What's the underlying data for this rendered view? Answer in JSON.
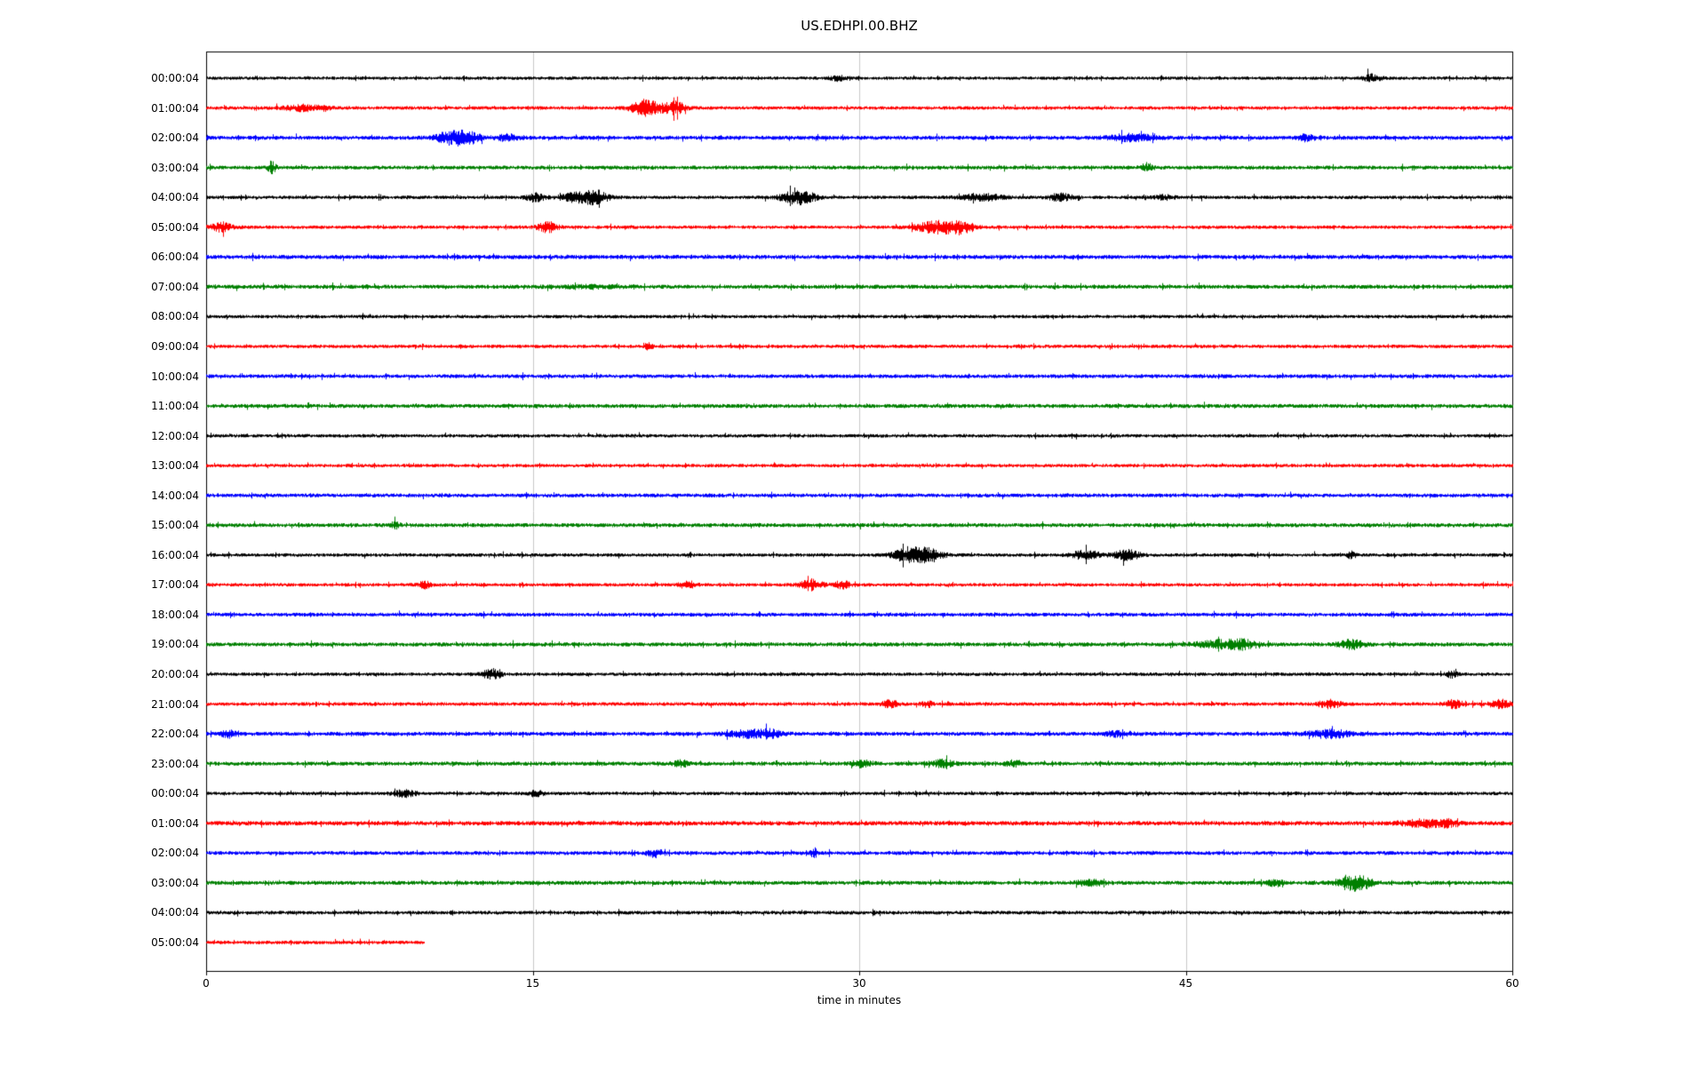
{
  "chart_data": {
    "type": "line",
    "subtype": "helicorder-seismogram",
    "title": "US.EDHPI.00.BHZ",
    "xlabel": "time in minutes",
    "x_range": [
      0,
      60
    ],
    "x_ticks": [
      0,
      15,
      30,
      45,
      60
    ],
    "x_tick_labels": [
      "0",
      "15",
      "30",
      "45",
      "60"
    ],
    "grid_x": [
      15,
      30,
      45
    ],
    "grid_color": "#c8c8c8",
    "trace_colors_cycle": [
      "#000000",
      "#ff0000",
      "#0000ff",
      "#008000"
    ],
    "rows": [
      {
        "label": "00:00:04",
        "color": "#000000",
        "noise": 0.95,
        "end_minute": 60,
        "events": [
          {
            "t": 29.0,
            "dur": 0.25,
            "amp": 1.2
          },
          {
            "t": 53.5,
            "dur": 0.3,
            "amp": 1.8
          }
        ]
      },
      {
        "label": "01:00:04",
        "color": "#ff0000",
        "noise": 1.0,
        "end_minute": 60,
        "events": [
          {
            "t": 4.5,
            "dur": 0.7,
            "amp": 1.5
          },
          {
            "t": 20.2,
            "dur": 0.45,
            "amp": 4.5
          },
          {
            "t": 21.5,
            "dur": 0.35,
            "amp": 3.5
          }
        ]
      },
      {
        "label": "02:00:04",
        "color": "#0000ff",
        "noise": 1.15,
        "end_minute": 60,
        "events": [
          {
            "t": 11.3,
            "dur": 0.5,
            "amp": 3.5
          },
          {
            "t": 12.1,
            "dur": 0.4,
            "amp": 2.2
          },
          {
            "t": 13.8,
            "dur": 0.3,
            "amp": 2.0
          },
          {
            "t": 42.5,
            "dur": 0.7,
            "amp": 1.8
          },
          {
            "t": 50.5,
            "dur": 0.25,
            "amp": 1.6
          }
        ]
      },
      {
        "label": "03:00:04",
        "color": "#008000",
        "noise": 1.1,
        "end_minute": 60,
        "events": [
          {
            "t": 3.0,
            "dur": 0.12,
            "amp": 3.5
          },
          {
            "t": 43.2,
            "dur": 0.18,
            "amp": 2.2
          }
        ]
      },
      {
        "label": "04:00:04",
        "color": "#000000",
        "noise": 1.0,
        "end_minute": 60,
        "events": [
          {
            "t": 15.1,
            "dur": 0.3,
            "amp": 2.2
          },
          {
            "t": 17.2,
            "dur": 0.6,
            "amp": 2.8
          },
          {
            "t": 18.0,
            "dur": 0.35,
            "amp": 2.2
          },
          {
            "t": 26.9,
            "dur": 0.45,
            "amp": 2.8
          },
          {
            "t": 27.6,
            "dur": 0.35,
            "amp": 2.4
          },
          {
            "t": 35.6,
            "dur": 0.7,
            "amp": 1.6
          },
          {
            "t": 39.2,
            "dur": 0.4,
            "amp": 1.8
          },
          {
            "t": 44.0,
            "dur": 0.3,
            "amp": 1.2
          }
        ]
      },
      {
        "label": "05:00:04",
        "color": "#ff0000",
        "noise": 1.0,
        "end_minute": 60,
        "events": [
          {
            "t": 0.7,
            "dur": 0.35,
            "amp": 2.2
          },
          {
            "t": 15.7,
            "dur": 0.3,
            "amp": 2.8
          },
          {
            "t": 33.6,
            "dur": 0.7,
            "amp": 3.2
          },
          {
            "t": 34.7,
            "dur": 0.35,
            "amp": 2.6
          }
        ]
      },
      {
        "label": "06:00:04",
        "color": "#0000ff",
        "noise": 1.2,
        "end_minute": 60,
        "events": []
      },
      {
        "label": "07:00:04",
        "color": "#008000",
        "noise": 1.15,
        "end_minute": 60,
        "events": [
          {
            "t": 17.5,
            "dur": 1.2,
            "amp": 0.5
          }
        ]
      },
      {
        "label": "08:00:04",
        "color": "#000000",
        "noise": 1.0,
        "end_minute": 60,
        "events": []
      },
      {
        "label": "09:00:04",
        "color": "#ff0000",
        "noise": 1.0,
        "end_minute": 60,
        "events": [
          {
            "t": 20.3,
            "dur": 0.12,
            "amp": 1.8
          }
        ]
      },
      {
        "label": "10:00:04",
        "color": "#0000ff",
        "noise": 1.1,
        "end_minute": 60,
        "events": []
      },
      {
        "label": "11:00:04",
        "color": "#008000",
        "noise": 1.15,
        "end_minute": 60,
        "events": []
      },
      {
        "label": "12:00:04",
        "color": "#000000",
        "noise": 1.0,
        "end_minute": 60,
        "events": []
      },
      {
        "label": "13:00:04",
        "color": "#ff0000",
        "noise": 1.0,
        "end_minute": 60,
        "events": []
      },
      {
        "label": "14:00:04",
        "color": "#0000ff",
        "noise": 1.1,
        "end_minute": 60,
        "events": []
      },
      {
        "label": "15:00:04",
        "color": "#008000",
        "noise": 1.15,
        "end_minute": 60,
        "events": [
          {
            "t": 8.7,
            "dur": 0.12,
            "amp": 1.6
          }
        ]
      },
      {
        "label": "16:00:04",
        "color": "#000000",
        "noise": 1.0,
        "end_minute": 60,
        "events": [
          {
            "t": 32.3,
            "dur": 0.5,
            "amp": 4.0
          },
          {
            "t": 33.3,
            "dur": 0.4,
            "amp": 3.0
          },
          {
            "t": 40.4,
            "dur": 0.5,
            "amp": 2.2
          },
          {
            "t": 42.3,
            "dur": 0.4,
            "amp": 2.6
          },
          {
            "t": 52.6,
            "dur": 0.12,
            "amp": 2.2
          }
        ]
      },
      {
        "label": "17:00:04",
        "color": "#ff0000",
        "noise": 1.0,
        "end_minute": 60,
        "events": [
          {
            "t": 10.0,
            "dur": 0.18,
            "amp": 2.0
          },
          {
            "t": 22.1,
            "dur": 0.25,
            "amp": 2.0
          },
          {
            "t": 27.8,
            "dur": 0.35,
            "amp": 2.6
          },
          {
            "t": 29.2,
            "dur": 0.25,
            "amp": 2.0
          }
        ]
      },
      {
        "label": "18:00:04",
        "color": "#0000ff",
        "noise": 1.1,
        "end_minute": 60,
        "events": []
      },
      {
        "label": "19:00:04",
        "color": "#008000",
        "noise": 1.15,
        "end_minute": 60,
        "events": [
          {
            "t": 46.6,
            "dur": 0.8,
            "amp": 2.0
          },
          {
            "t": 47.6,
            "dur": 0.4,
            "amp": 1.6
          },
          {
            "t": 52.6,
            "dur": 0.4,
            "amp": 2.4
          }
        ]
      },
      {
        "label": "20:00:04",
        "color": "#000000",
        "noise": 1.0,
        "end_minute": 60,
        "events": [
          {
            "t": 13.1,
            "dur": 0.28,
            "amp": 2.6
          },
          {
            "t": 57.2,
            "dur": 0.18,
            "amp": 1.6
          }
        ]
      },
      {
        "label": "21:00:04",
        "color": "#ff0000",
        "noise": 1.05,
        "end_minute": 60,
        "events": [
          {
            "t": 31.4,
            "dur": 0.25,
            "amp": 2.0
          },
          {
            "t": 33.1,
            "dur": 0.18,
            "amp": 1.6
          },
          {
            "t": 51.6,
            "dur": 0.35,
            "amp": 2.2
          },
          {
            "t": 57.3,
            "dur": 0.28,
            "amp": 2.2
          },
          {
            "t": 59.4,
            "dur": 0.35,
            "amp": 2.2
          }
        ]
      },
      {
        "label": "22:00:04",
        "color": "#0000ff",
        "noise": 1.15,
        "end_minute": 60,
        "events": [
          {
            "t": 1.0,
            "dur": 0.18,
            "amp": 2.4
          },
          {
            "t": 24.9,
            "dur": 0.7,
            "amp": 1.8
          },
          {
            "t": 25.9,
            "dur": 0.35,
            "amp": 1.5
          },
          {
            "t": 41.9,
            "dur": 0.45,
            "amp": 1.2
          },
          {
            "t": 51.6,
            "dur": 0.7,
            "amp": 2.0
          }
        ]
      },
      {
        "label": "23:00:04",
        "color": "#008000",
        "noise": 1.15,
        "end_minute": 60,
        "events": [
          {
            "t": 21.8,
            "dur": 0.25,
            "amp": 1.6
          },
          {
            "t": 30.1,
            "dur": 0.35,
            "amp": 1.6
          },
          {
            "t": 33.8,
            "dur": 0.35,
            "amp": 1.8
          },
          {
            "t": 37.1,
            "dur": 0.25,
            "amp": 1.5
          }
        ]
      },
      {
        "label": "00:00:04",
        "color": "#000000",
        "noise": 1.0,
        "end_minute": 60,
        "events": [
          {
            "t": 9.1,
            "dur": 0.35,
            "amp": 1.8
          },
          {
            "t": 15.1,
            "dur": 0.25,
            "amp": 1.5
          }
        ]
      },
      {
        "label": "01:00:04",
        "color": "#ff0000",
        "noise": 1.25,
        "end_minute": 60,
        "events": [
          {
            "t": 55.9,
            "dur": 0.7,
            "amp": 1.8
          },
          {
            "t": 57.1,
            "dur": 0.3,
            "amp": 1.4
          }
        ]
      },
      {
        "label": "02:00:04",
        "color": "#0000ff",
        "noise": 1.1,
        "end_minute": 60,
        "events": [
          {
            "t": 20.6,
            "dur": 0.25,
            "amp": 2.0
          },
          {
            "t": 27.9,
            "dur": 0.1,
            "amp": 2.6
          }
        ]
      },
      {
        "label": "03:00:04",
        "color": "#008000",
        "noise": 1.15,
        "end_minute": 60,
        "events": [
          {
            "t": 40.6,
            "dur": 0.45,
            "amp": 1.4
          },
          {
            "t": 49.1,
            "dur": 0.25,
            "amp": 1.6
          },
          {
            "t": 52.4,
            "dur": 0.35,
            "amp": 3.5
          },
          {
            "t": 53.1,
            "dur": 0.35,
            "amp": 2.8
          }
        ]
      },
      {
        "label": "04:00:04",
        "color": "#000000",
        "noise": 1.05,
        "end_minute": 60,
        "events": []
      },
      {
        "label": "05:00:04",
        "color": "#ff0000",
        "noise": 1.0,
        "end_minute": 10,
        "events": []
      }
    ]
  }
}
